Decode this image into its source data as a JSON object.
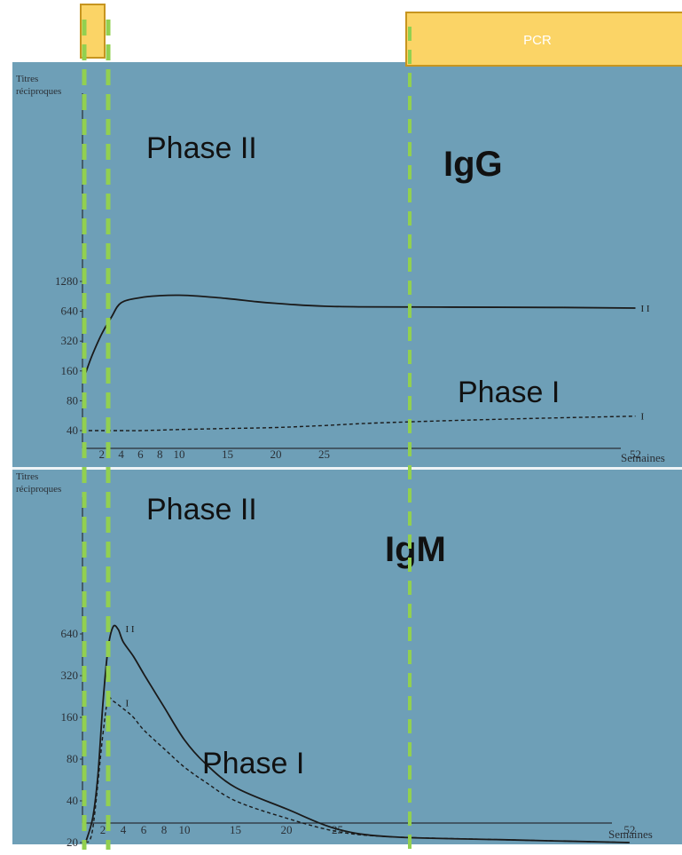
{
  "colors": {
    "panel_bg": "#6e9fb7",
    "pcr_bar": "#fbd466",
    "pcr_border": "#c7951f",
    "guide_lines": "#92d050",
    "curve": "#1a1a1a"
  },
  "pcr_label": "PCR",
  "chart_data": [
    {
      "type": "line",
      "title": "IgG",
      "ylabel_line1": "Titres",
      "ylabel_line2": "réciproques",
      "xlabel": "Semaines",
      "x_ticks": [
        2,
        4,
        6,
        8,
        10,
        15,
        20,
        25,
        52
      ],
      "y_ticks": [
        40,
        80,
        160,
        320,
        640,
        1280
      ],
      "series": [
        {
          "name": "Phase II",
          "curve_label": "I I",
          "x": [
            0.3,
            1,
            2,
            3,
            4,
            6,
            8,
            10,
            12,
            15,
            18,
            20,
            22,
            25,
            28,
            35,
            45,
            52
          ],
          "y": [
            150,
            230,
            380,
            560,
            780,
            880,
            920,
            930,
            910,
            860,
            800,
            770,
            745,
            720,
            710,
            705,
            700,
            690
          ]
        },
        {
          "name": "Phase I",
          "curve_label": "I",
          "x": [
            0,
            2,
            4,
            6,
            10,
            15,
            20,
            25,
            30,
            40,
            52
          ],
          "y": [
            40,
            40,
            40,
            40,
            41,
            42,
            43,
            45,
            48,
            52,
            56
          ]
        }
      ],
      "annotations": [
        "Phase II",
        "Phase I"
      ]
    },
    {
      "type": "line",
      "title": "IgM",
      "ylabel_line1": "Titres",
      "ylabel_line2": "réciproques",
      "xlabel": "Semaines",
      "x_ticks": [
        2,
        4,
        6,
        8,
        10,
        15,
        20,
        25,
        52
      ],
      "y_ticks": [
        20,
        40,
        80,
        160,
        320,
        640
      ],
      "series": [
        {
          "name": "Phase II",
          "curve_label": "I I",
          "x": [
            0.3,
            1,
            1.5,
            2,
            2.5,
            3,
            3.5,
            4,
            5,
            6,
            7,
            8,
            10,
            12,
            15,
            20,
            25,
            30,
            40,
            52
          ],
          "y": [
            20,
            30,
            60,
            200,
            500,
            720,
            690,
            560,
            440,
            330,
            250,
            190,
            110,
            75,
            50,
            35,
            25,
            22,
            21,
            20
          ]
        },
        {
          "name": "Phase I",
          "curve_label": "I",
          "x": [
            0.3,
            1,
            2,
            2.5,
            3,
            4,
            5,
            6,
            8,
            10,
            12,
            15,
            20,
            25,
            30,
            40,
            52
          ],
          "y": [
            20,
            25,
            120,
            215,
            210,
            185,
            160,
            130,
            95,
            70,
            55,
            40,
            30,
            24,
            22,
            21,
            20
          ]
        }
      ],
      "annotations": [
        "Phase II",
        "Phase I"
      ]
    }
  ]
}
